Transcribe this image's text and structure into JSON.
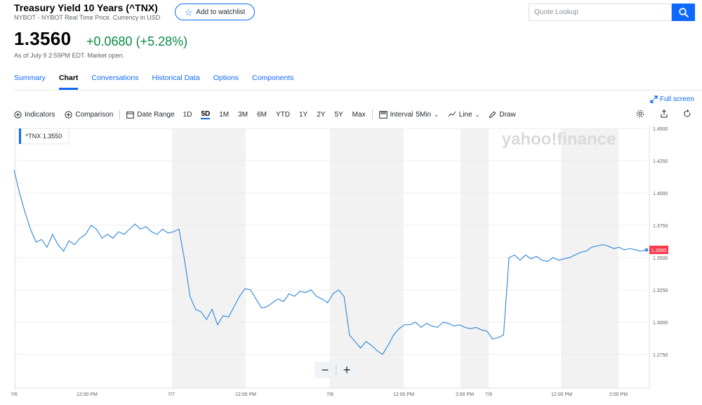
{
  "header": {
    "title": "Treasury Yield 10 Years (^TNX)",
    "subtitle": "NYBOT - NYBOT Real Time Price. Currency in USD",
    "watchlist_label": "Add to watchlist",
    "search_placeholder": "Quote Lookup"
  },
  "quote": {
    "price": "1.3560",
    "change": "+0.0680 (+5.28%)",
    "as_of": "As of July 9 2:59PM EDT. Market open."
  },
  "tabs": [
    {
      "label": "Summary"
    },
    {
      "label": "Chart"
    },
    {
      "label": "Conversations"
    },
    {
      "label": "Historical Data"
    },
    {
      "label": "Options"
    },
    {
      "label": "Components"
    }
  ],
  "active_tab": "Chart",
  "fullscreen_label": "Full screen",
  "toolbar": {
    "indicators": "Indicators",
    "comparison": "Comparison",
    "date_range": "Date Range",
    "ranges": [
      "1D",
      "5D",
      "1M",
      "3M",
      "6M",
      "YTD",
      "1Y",
      "2Y",
      "5Y",
      "Max"
    ],
    "active_range": "5D",
    "interval_label": "Interval",
    "interval_value": "5Min",
    "chart_type": "Line",
    "draw": "Draw"
  },
  "colors": {
    "accent": "#0f69ff",
    "up": "#0b8a45",
    "line": "#3d8fdb",
    "price_tag": "#ff3d4f",
    "band": "#f2f2f2"
  },
  "icons": [
    "star-icon",
    "search-icon",
    "fullscreen-icon",
    "indicators-icon",
    "comparison-icon",
    "calendar-icon",
    "interval-icon",
    "line-icon",
    "draw-icon",
    "settings-icon",
    "share-icon",
    "reset-icon"
  ],
  "chart_data": {
    "type": "line",
    "series_label": "^TNX 1.3550",
    "watermark": "yahoo!finance",
    "current_price_label": "1.3560",
    "current_value": 1.356,
    "ylim": [
      1.25,
      1.45
    ],
    "y_ticks": [
      "1.4500",
      "1.4250",
      "1.4000",
      "1.3750",
      "1.3500",
      "1.3250",
      "1.3000",
      "1.2750"
    ],
    "x_ticks": [
      "7/6",
      "12:00 PM",
      "7/7",
      "12:00 PM",
      "7/8",
      "12:00 PM",
      "2:00 PM",
      "7/9",
      "12:00 PM",
      "2:00 PM"
    ],
    "grid": true,
    "zoom_out_label": "−",
    "zoom_in_label": "+",
    "values": [
      1.418,
      1.4,
      1.385,
      1.372,
      1.362,
      1.364,
      1.358,
      1.368,
      1.36,
      1.355,
      1.363,
      1.36,
      1.365,
      1.368,
      1.375,
      1.372,
      1.365,
      1.368,
      1.365,
      1.37,
      1.368,
      1.372,
      1.376,
      1.372,
      1.374,
      1.37,
      1.368,
      1.372,
      1.369,
      1.37,
      1.372,
      1.348,
      1.32,
      1.31,
      1.308,
      1.302,
      1.31,
      1.298,
      1.305,
      1.304,
      1.312,
      1.32,
      1.326,
      1.325,
      1.318,
      1.311,
      1.312,
      1.315,
      1.318,
      1.316,
      1.322,
      1.32,
      1.324,
      1.323,
      1.325,
      1.32,
      1.318,
      1.315,
      1.322,
      1.325,
      1.32,
      1.29,
      1.285,
      1.28,
      1.285,
      1.282,
      1.278,
      1.275,
      1.282,
      1.29,
      1.295,
      1.298,
      1.298,
      1.3,
      1.296,
      1.299,
      1.297,
      1.296,
      1.3,
      1.299,
      1.297,
      1.298,
      1.296,
      1.295,
      1.296,
      1.294,
      1.293,
      1.287,
      1.288,
      1.29,
      1.35,
      1.352,
      1.348,
      1.352,
      1.349,
      1.351,
      1.348,
      1.347,
      1.35,
      1.348,
      1.349,
      1.35,
      1.352,
      1.354,
      1.355,
      1.358,
      1.359,
      1.36,
      1.359,
      1.357,
      1.358,
      1.356,
      1.357,
      1.356,
      1.355,
      1.356
    ]
  }
}
